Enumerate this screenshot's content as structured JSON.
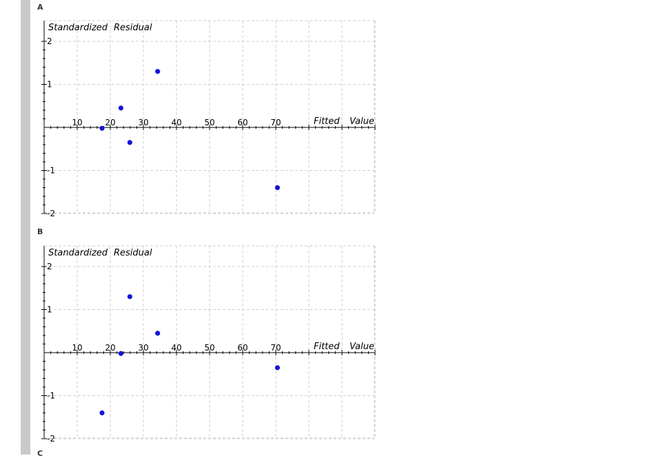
{
  "options": [
    {
      "letter": "A"
    },
    {
      "letter": "B"
    }
  ],
  "next_letter": "C",
  "chart_data": [
    {
      "type": "scatter",
      "title": "",
      "ylabel_parts": [
        "Standardized",
        "Residual"
      ],
      "xlabel_parts": [
        "Fitted",
        "Value"
      ],
      "xlim": [
        0,
        100
      ],
      "ylim": [
        -2,
        2
      ],
      "xticks": [
        10,
        20,
        30,
        40,
        50,
        60,
        70
      ],
      "yticks": [
        2,
        1,
        -1,
        -2
      ],
      "grid": true,
      "point_color": "#1515d8",
      "x": [
        17.5,
        23.2,
        25.9,
        34.3,
        70.5
      ],
      "y": [
        -0.02,
        0.45,
        -0.35,
        1.3,
        -1.4
      ]
    },
    {
      "type": "scatter",
      "title": "",
      "ylabel_parts": [
        "Standardized",
        "Residual"
      ],
      "xlabel_parts": [
        "Fitted",
        "Value"
      ],
      "xlim": [
        0,
        100
      ],
      "ylim": [
        -2,
        2
      ],
      "xticks": [
        10,
        20,
        30,
        40,
        50,
        60,
        70
      ],
      "yticks": [
        2,
        1,
        -1,
        -2
      ],
      "grid": true,
      "point_color": "#1515d8",
      "x": [
        17.5,
        23.2,
        25.9,
        34.3,
        70.5
      ],
      "y": [
        -1.4,
        -0.02,
        1.3,
        0.45,
        -0.35
      ]
    }
  ]
}
